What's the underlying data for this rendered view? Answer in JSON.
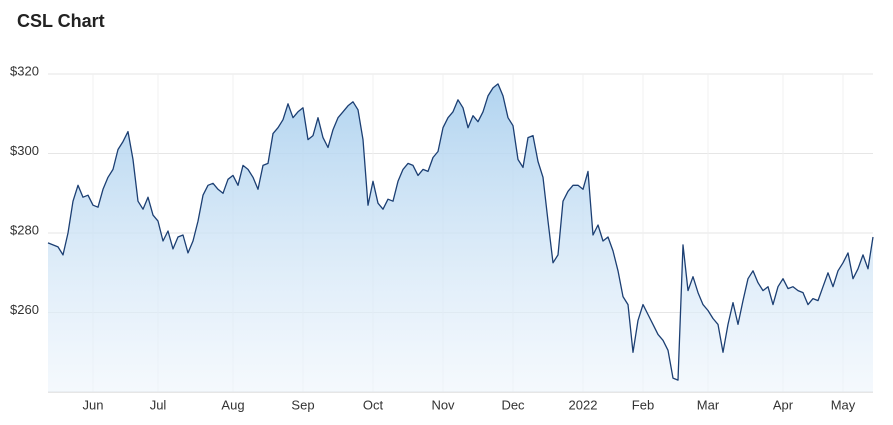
{
  "chart_data": {
    "type": "area-line",
    "title": "CSL Chart",
    "categories": [
      null,
      null,
      null,
      null,
      null,
      null,
      null,
      null,
      null,
      "Jun",
      null,
      null,
      null,
      null,
      null,
      null,
      null,
      null,
      null,
      null,
      null,
      null,
      "Jul",
      null,
      null,
      null,
      null,
      null,
      null,
      null,
      null,
      null,
      null,
      null,
      null,
      null,
      null,
      "Aug",
      null,
      null,
      null,
      null,
      null,
      null,
      null,
      null,
      null,
      null,
      null,
      null,
      null,
      "Sep",
      null,
      null,
      null,
      null,
      null,
      null,
      null,
      null,
      null,
      null,
      null,
      null,
      null,
      "Oct",
      null,
      null,
      null,
      null,
      null,
      null,
      null,
      null,
      null,
      null,
      null,
      null,
      null,
      "Nov",
      null,
      null,
      null,
      null,
      null,
      null,
      null,
      null,
      null,
      null,
      null,
      null,
      null,
      "Dec",
      null,
      null,
      null,
      null,
      null,
      null,
      null,
      null,
      null,
      null,
      null,
      null,
      null,
      "2022",
      null,
      null,
      null,
      null,
      null,
      null,
      null,
      null,
      null,
      null,
      null,
      "Feb",
      null,
      null,
      null,
      null,
      null,
      null,
      null,
      null,
      null,
      null,
      null,
      null,
      "Mar",
      null,
      null,
      null,
      null,
      null,
      null,
      null,
      null,
      null,
      null,
      null,
      null,
      null,
      null,
      "Apr",
      null,
      null,
      null,
      null,
      null,
      null,
      null,
      null,
      null,
      null,
      null,
      "May",
      null,
      null,
      null,
      null,
      null,
      null
    ],
    "values": [
      277.5,
      277,
      276.5,
      274.5,
      280,
      288,
      292,
      289,
      289.5,
      287,
      286.5,
      291,
      294,
      296,
      301,
      303,
      305.5,
      298.5,
      288,
      286,
      289,
      284.5,
      283,
      278,
      280.5,
      276,
      279,
      279.5,
      275,
      278,
      283,
      289.5,
      292,
      292.5,
      291,
      290,
      293.5,
      294.5,
      292,
      297,
      296,
      294,
      291,
      297,
      297.5,
      305,
      306.5,
      308.5,
      312.5,
      309,
      310.5,
      311.5,
      303.5,
      304.5,
      309,
      304,
      301.5,
      306,
      309,
      310.5,
      312,
      313,
      311,
      303.5,
      287,
      293,
      287.5,
      286,
      288.5,
      288,
      293,
      296,
      297.5,
      297,
      294.5,
      296,
      295.5,
      299,
      300.5,
      306.5,
      309,
      310.5,
      313.5,
      311.5,
      306.5,
      309.5,
      308,
      310.5,
      314.5,
      316.5,
      317.5,
      314.5,
      309,
      307,
      298.5,
      296.5,
      304,
      304.5,
      298,
      294,
      283,
      272.5,
      274.5,
      288,
      290.5,
      292,
      292,
      291,
      295.5,
      279.5,
      282,
      278,
      279,
      275.5,
      270.5,
      264,
      262,
      250,
      258,
      262,
      259.5,
      257,
      254.5,
      253,
      250.5,
      243.5,
      243,
      277,
      265.5,
      269,
      265,
      262,
      260.5,
      258.5,
      257,
      250,
      257,
      262.5,
      257,
      263,
      268.5,
      270.5,
      267.5,
      265.5,
      266.5,
      262,
      266.5,
      268.5,
      266,
      266.5,
      265.5,
      265,
      262,
      263.5,
      263,
      266.5,
      270,
      266.5,
      270.5,
      272.5,
      275,
      268.5,
      271,
      274.5,
      271,
      279
    ],
    "color": "#1c3f73",
    "ylim": [
      240,
      320
    ],
    "yticks": [
      {
        "value": 260,
        "label": "$260"
      },
      {
        "value": 280,
        "label": "$280"
      },
      {
        "value": 300,
        "label": "$300"
      },
      {
        "value": 320,
        "label": "$320"
      }
    ],
    "grid": true
  }
}
